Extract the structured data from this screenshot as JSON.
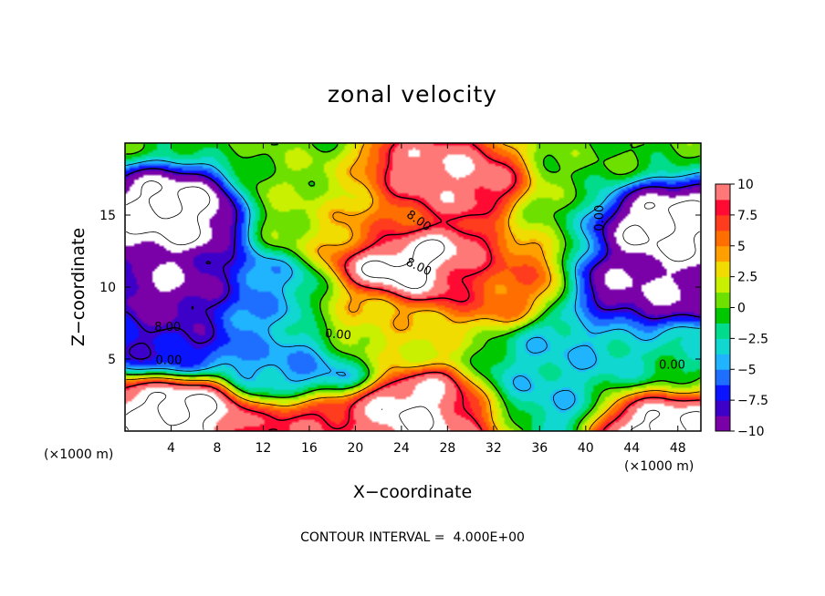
{
  "chart_data": {
    "type": "heatmap",
    "title": "zonal velocity",
    "xlabel": "X−coordinate",
    "ylabel": "Z−coordinate",
    "x_unit_left": "(×1000 m)",
    "x_unit_right": "(×1000 m)",
    "xlim": [
      0,
      50
    ],
    "ylim": [
      0,
      20
    ],
    "x_ticks": [
      4,
      8,
      12,
      16,
      20,
      24,
      28,
      32,
      36,
      40,
      44,
      48
    ],
    "x_tick_labels": [
      "4",
      "8",
      "12",
      "16",
      "20",
      "24",
      "28",
      "32",
      "36",
      "40",
      "44",
      "48"
    ],
    "y_ticks": [
      5,
      10,
      15
    ],
    "y_tick_labels": [
      "5",
      "10",
      "15"
    ],
    "colorbar": {
      "min": -10,
      "max": 10,
      "ticks": [
        10,
        7.5,
        5,
        2.5,
        0,
        -2.5,
        -5,
        -7.5,
        -10
      ],
      "tick_labels": [
        "10",
        "7.5",
        "5",
        "2.5",
        "0",
        "−2.5",
        "−5",
        "−7.5",
        "−10"
      ]
    },
    "contour_labels": [
      "8.00",
      "8.00",
      "0.00",
      "8.00",
      "0.00",
      "0.00",
      "0.00"
    ],
    "contour_interval": 4.0,
    "note": "CONTOUR INTERVAL =  4.000E+00",
    "field_features": [
      {
        "x": 26,
        "z": 11.5,
        "value": 14
      },
      {
        "x": 27,
        "z": 17.5,
        "value": 11
      },
      {
        "x": 22,
        "z": 15,
        "value": 6
      },
      {
        "x": 31,
        "z": 10.5,
        "value": 6
      },
      {
        "x": 22,
        "z": 7,
        "value": 3
      },
      {
        "x": 17,
        "z": 16,
        "value": 1
      },
      {
        "x": 3.5,
        "z": 15,
        "value": -13
      },
      {
        "x": 6,
        "z": 9.5,
        "value": -12
      },
      {
        "x": 4,
        "z": 6.3,
        "value": -8
      },
      {
        "x": 10,
        "z": 9,
        "value": -4
      },
      {
        "x": 48.5,
        "z": 14,
        "value": -13
      },
      {
        "x": 46,
        "z": 10,
        "value": -11
      },
      {
        "x": 15,
        "z": 4.5,
        "value": -5
      },
      {
        "x": 41,
        "z": 5.5,
        "value": -4
      },
      {
        "x": 46,
        "z": 4.5,
        "value": -2
      },
      {
        "x": 4,
        "z": 1.2,
        "value": 13
      },
      {
        "x": 16.5,
        "z": 0.2,
        "value": 9
      },
      {
        "x": 26,
        "z": 1.0,
        "value": 13
      },
      {
        "x": 30,
        "z": 0.5,
        "value": 10
      },
      {
        "x": 46,
        "z": 0.8,
        "value": 13
      },
      {
        "x": 35,
        "z": 1.5,
        "value": -5
      },
      {
        "x": 38,
        "z": 3,
        "value": -3
      }
    ]
  }
}
